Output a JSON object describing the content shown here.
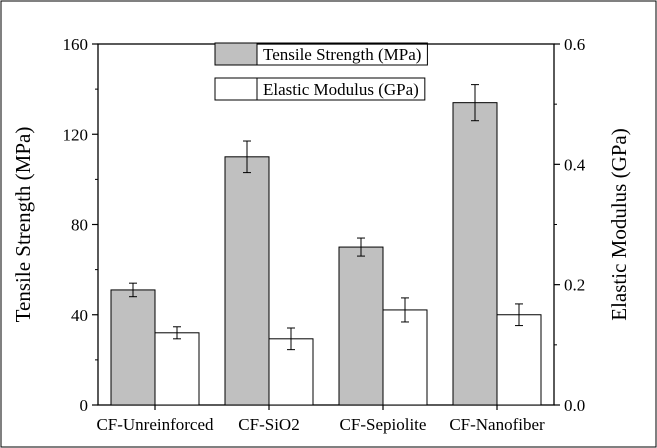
{
  "chart_data": {
    "type": "bar",
    "categories": [
      "CF-Unreinforced",
      "CF-SiO2",
      "CF-Sepiolite",
      "CF-Nanofiber"
    ],
    "series": [
      {
        "name": "Tensile Strength (MPa)",
        "axis": "left",
        "color": "#c0c0c0",
        "values": [
          51,
          110,
          70,
          134
        ],
        "errors": [
          3,
          7,
          4,
          8
        ]
      },
      {
        "name": "Elastic Modulus (GPa)",
        "axis": "right",
        "color": "#ffffff",
        "values": [
          0.12,
          0.11,
          0.158,
          0.15
        ],
        "errors": [
          0.01,
          0.018,
          0.02,
          0.018
        ]
      }
    ],
    "ylabel": "Tensile Strength (MPa)",
    "y2label": "Elastic Modulus (GPa)",
    "ylim": [
      0,
      160
    ],
    "y2lim": [
      0,
      0.6
    ],
    "yticks": [
      "0",
      "40",
      "80",
      "120",
      "160"
    ],
    "y2ticks": [
      "0.0",
      "0.2",
      "0.4",
      "0.6"
    ],
    "grid": false,
    "legend": "top-center"
  }
}
